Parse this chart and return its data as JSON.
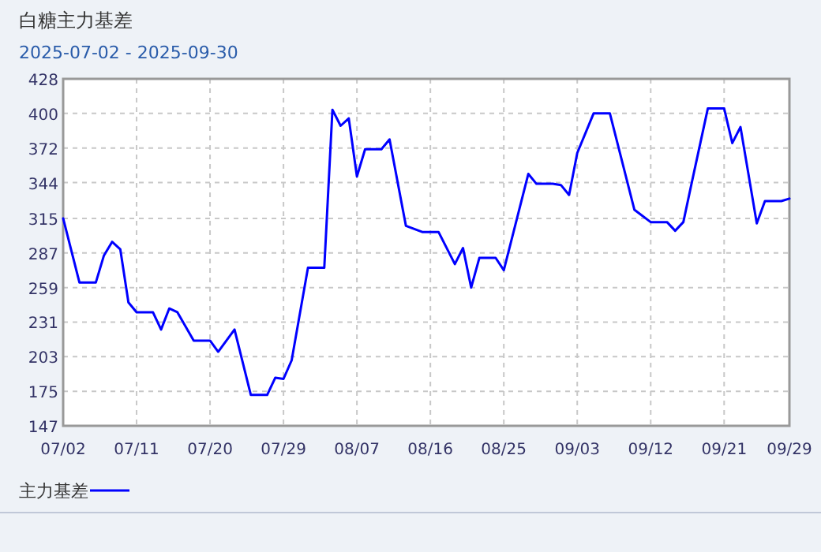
{
  "chart_data": {
    "type": "line",
    "title": "白糖主力基差",
    "subtitle": "2025-07-02 - 2025-09-30",
    "x": [
      "2025-07-02",
      "2025-07-04",
      "2025-07-06",
      "2025-07-07",
      "2025-07-08",
      "2025-07-09",
      "2025-07-10",
      "2025-07-11",
      "2025-07-13",
      "2025-07-14",
      "2025-07-15",
      "2025-07-16",
      "2025-07-18",
      "2025-07-20",
      "2025-07-21",
      "2025-07-23",
      "2025-07-25",
      "2025-07-27",
      "2025-07-28",
      "2025-07-29",
      "2025-07-30",
      "2025-08-01",
      "2025-08-03",
      "2025-08-04",
      "2025-08-05",
      "2025-08-06",
      "2025-08-07",
      "2025-08-08",
      "2025-08-10",
      "2025-08-11",
      "2025-08-13",
      "2025-08-15",
      "2025-08-17",
      "2025-08-19",
      "2025-08-20",
      "2025-08-21",
      "2025-08-22",
      "2025-08-24",
      "2025-08-25",
      "2025-08-28",
      "2025-08-29",
      "2025-08-31",
      "2025-09-01",
      "2025-09-02",
      "2025-09-03",
      "2025-09-05",
      "2025-09-07",
      "2025-09-10",
      "2025-09-12",
      "2025-09-14",
      "2025-09-15",
      "2025-09-16",
      "2025-09-17",
      "2025-09-19",
      "2025-09-21",
      "2025-09-22",
      "2025-09-23",
      "2025-09-25",
      "2025-09-26",
      "2025-09-28",
      "2025-09-29"
    ],
    "series": [
      {
        "name": "主力基差",
        "color": "#0000ff",
        "values": [
          315,
          263,
          263,
          285,
          296,
          290,
          247,
          239,
          239,
          225,
          242,
          239,
          216,
          216,
          207,
          225,
          172,
          172,
          186,
          185,
          200,
          275,
          275,
          403,
          390,
          396,
          349,
          371,
          371,
          379,
          309,
          304,
          304,
          278,
          291,
          259,
          283,
          283,
          273,
          351,
          343,
          343,
          342,
          334,
          368,
          400,
          400,
          322,
          312,
          312,
          305,
          312,
          343,
          404,
          404,
          376,
          389,
          311,
          329,
          329,
          331
        ]
      }
    ],
    "xlim": [
      "2025-07-02",
      "2025-09-29"
    ],
    "xticks": [
      {
        "value": "2025-07-02",
        "label": "07/02"
      },
      {
        "value": "2025-07-11",
        "label": "07/11"
      },
      {
        "value": "2025-07-20",
        "label": "07/20"
      },
      {
        "value": "2025-07-29",
        "label": "07/29"
      },
      {
        "value": "2025-08-07",
        "label": "08/07"
      },
      {
        "value": "2025-08-16",
        "label": "08/16"
      },
      {
        "value": "2025-08-25",
        "label": "08/25"
      },
      {
        "value": "2025-09-03",
        "label": "09/03"
      },
      {
        "value": "2025-09-12",
        "label": "09/12"
      },
      {
        "value": "2025-09-21",
        "label": "09/21"
      },
      {
        "value": "2025-09-29",
        "label": "09/29"
      }
    ],
    "ylim": [
      147,
      428
    ],
    "yticks": [
      147,
      175,
      203,
      231,
      259,
      287,
      315,
      344,
      372,
      400,
      428
    ],
    "grid": true,
    "legend": "bottom",
    "marker": "none",
    "line_style": "solid"
  }
}
